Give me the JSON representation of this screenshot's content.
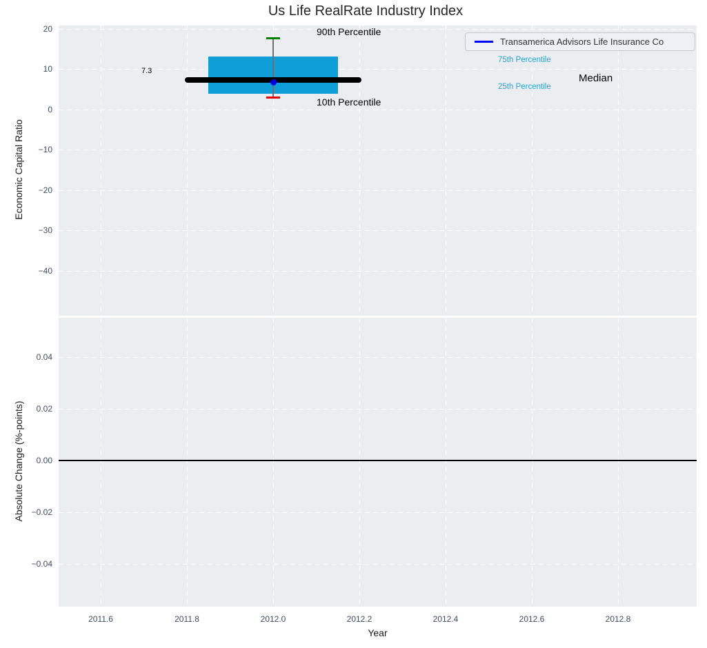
{
  "figure_title": "Us Life RealRate Industry Index",
  "legend": {
    "position": "upper right",
    "entries": [
      {
        "label": "Transamerica Advisors Life Insurance Co",
        "line_color": "#0000ff"
      }
    ]
  },
  "annotations": {
    "p90": "90th Percentile",
    "p75": "75th Percentile",
    "median": "Median",
    "p25": "25th Percentile",
    "p10": "10th Percentile",
    "median_value": "7.3"
  },
  "colors": {
    "plot_background": "#ebeef0",
    "grid": "#ffffff",
    "box_fill": "#0f9fd8",
    "percentile_label": "#25a3d8",
    "median_line": "#000000",
    "p90_cap": "#008000",
    "p10_cap": "#e60000",
    "company_marker": "#0000e6",
    "legend_line": "#0000ff",
    "tick_label": "#3c4d61",
    "zero_line": "#000000"
  },
  "chart_data": [
    {
      "type": "boxplot",
      "title": "Us Life RealRate Industry Index",
      "xlabel": "Year",
      "ylabel": "Economic Capital Ratio",
      "xlim": [
        2011.5,
        2012.98
      ],
      "ylim": [
        -51,
        21
      ],
      "grid": "white dashed, on",
      "legend_position": "upper right",
      "xticks": {
        "values": [
          2011.6,
          2011.8,
          2012.0,
          2012.2,
          2012.4,
          2012.6,
          2012.8
        ],
        "labels": [
          "2011.6",
          "2011.8",
          "2012.0",
          "2012.2",
          "2012.4",
          "2012.6",
          "2012.8"
        ],
        "show_labels": false
      },
      "yticks": {
        "values": [
          20,
          10,
          0,
          -10,
          -20,
          -30,
          -40
        ],
        "labels": [
          "20",
          "10",
          "0",
          "−10",
          "−20",
          "−30",
          "−40"
        ]
      },
      "series": [
        {
          "name": "Industry percentile box",
          "x": 2012.0,
          "p90": 17.6,
          "p75": 13.0,
          "median": 7.3,
          "p25": 3.9,
          "p10": 2.9,
          "median_label": "7.3"
        },
        {
          "name": "Transamerica Advisors Life Insurance Co",
          "marker": "point",
          "x": 2012.0,
          "y": 6.7
        }
      ]
    },
    {
      "type": "line",
      "title": "",
      "xlabel": "Year",
      "ylabel": "Absolute Change (%-points)",
      "xlim": [
        2011.5,
        2012.98
      ],
      "ylim": [
        -0.057,
        0.055
      ],
      "grid": "white dashed, on",
      "xticks": {
        "values": [
          2011.6,
          2011.8,
          2012.0,
          2012.2,
          2012.4,
          2012.6,
          2012.8
        ],
        "labels": [
          "2011.6",
          "2011.8",
          "2012.0",
          "2012.2",
          "2012.4",
          "2012.6",
          "2012.8"
        ],
        "show_labels": true
      },
      "yticks": {
        "values": [
          0.04,
          0.02,
          0,
          -0.02,
          -0.04
        ],
        "labels": [
          "0.04",
          "0.02",
          "0.00",
          "−0.02",
          "−0.04"
        ]
      },
      "series": [
        {
          "name": "zero reference line",
          "marker": "hline",
          "y": 0.0
        }
      ]
    }
  ]
}
